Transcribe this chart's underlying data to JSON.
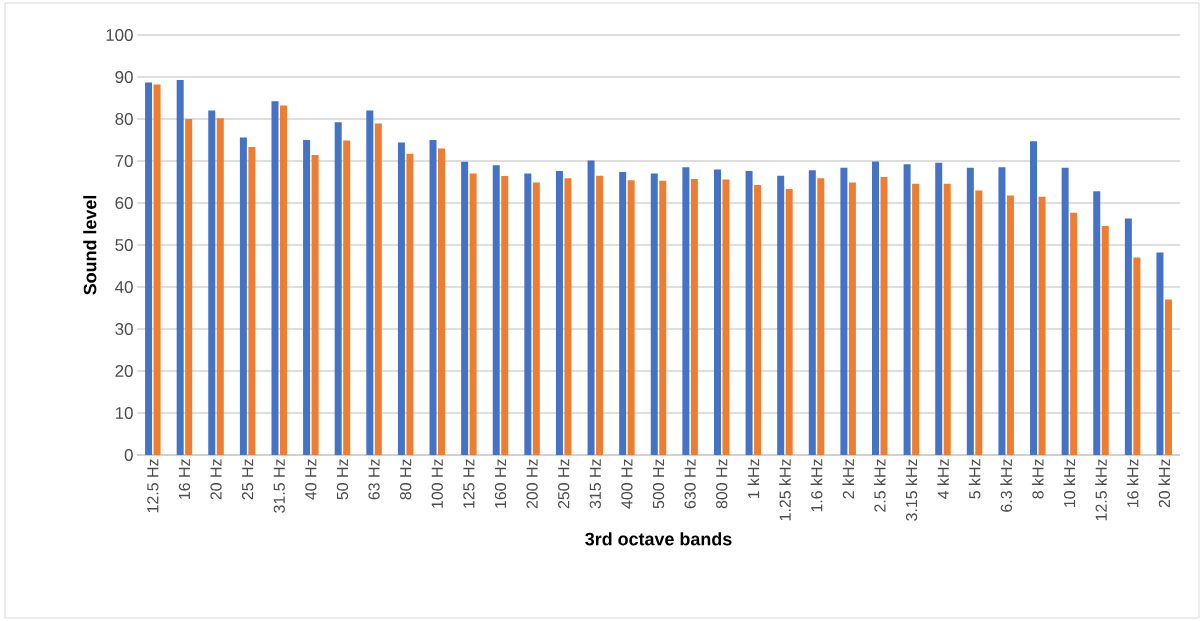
{
  "chart_data": {
    "type": "bar",
    "xlabel": "3rd octave bands",
    "ylabel": "Sound level",
    "categories": [
      "12.5 Hz",
      "16 Hz",
      "20 Hz",
      "25 Hz",
      "31.5 Hz",
      "40 Hz",
      "50 Hz",
      "63 Hz",
      "80 Hz",
      "100 Hz",
      "125 Hz",
      "160 Hz",
      "200 Hz",
      "250 Hz",
      "315 Hz",
      "400 Hz",
      "500 Hz",
      "630 Hz",
      "800 Hz",
      "1 kHz",
      "1.25 kHz",
      "1.6 kHz",
      "2 kHz",
      "2.5 kHz",
      "3.15 kHz",
      "4 kHz",
      "5 kHz",
      "6.3 kHz",
      "8 kHz",
      "10 kHz",
      "12.5 kHz",
      "16 kHz",
      "20 kHz"
    ],
    "series": [
      {
        "color": "#4472c4",
        "values": [
          88.7,
          89.3,
          82,
          75.6,
          84.2,
          75,
          79.2,
          82,
          74.4,
          75,
          69.8,
          69,
          67,
          67.6,
          70.1,
          67.4,
          67,
          68.5,
          68,
          67.6,
          66.5,
          67.8,
          68.4,
          69.9,
          69.2,
          69.6,
          68.4,
          68.5,
          74.7,
          68.4,
          62.8,
          56.3,
          48.2
        ]
      },
      {
        "color": "#ed7d31",
        "values": [
          88.2,
          80,
          80.2,
          73.3,
          83.2,
          71.4,
          74.9,
          78.9,
          71.7,
          73,
          67,
          66.4,
          64.9,
          65.9,
          66.5,
          65.4,
          65.3,
          65.7,
          65.6,
          64.3,
          63.3,
          65.9,
          64.9,
          66.2,
          64.6,
          64.6,
          63,
          61.8,
          61.5,
          57.7,
          54.5,
          47,
          37
        ]
      }
    ],
    "ylim": [
      0,
      100
    ],
    "yticks": [
      0,
      10,
      20,
      30,
      40,
      50,
      60,
      70,
      80,
      90,
      100
    ],
    "grid": "y"
  }
}
